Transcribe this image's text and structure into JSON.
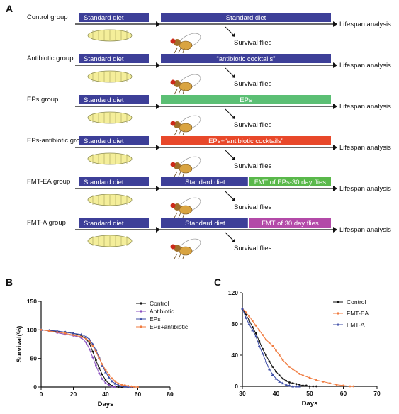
{
  "panels": {
    "a": "A",
    "b": "B",
    "c": "C"
  },
  "colors": {
    "diet": "#3d3f98",
    "eps": "#5bbf74",
    "antibiotic_eps": "#e8482a",
    "fmt_ea": "#59b84a",
    "fmt_a": "#b34aa8",
    "larva": "#f4ee9a"
  },
  "diagram": {
    "rows": [
      {
        "group": "Control group",
        "pre": "Standard diet",
        "post": [
          {
            "text": "Standard diet",
            "color": "#3d3f98",
            "frac": 1
          }
        ],
        "survival": "Survival flies",
        "outcome": "Lifespan analysis"
      },
      {
        "group": "Antibiotic group",
        "pre": "Standard diet",
        "post": [
          {
            "text": "“antibiotic cocktails”",
            "color": "#3d3f98",
            "frac": 1
          }
        ],
        "survival": "Survival flies",
        "outcome": "Lifespan analysis"
      },
      {
        "group": "EPs group",
        "pre": "Standard diet",
        "post": [
          {
            "text": "EPs",
            "color": "#5bbf74",
            "frac": 1
          }
        ],
        "survival": "Survival flies",
        "outcome": "Lifespan analysis"
      },
      {
        "group": "EPs-antibiotic group",
        "pre": "Standard diet",
        "post": [
          {
            "text": "EPs+“antibiotic cocktails”",
            "color": "#e8482a",
            "frac": 1
          }
        ],
        "survival": "Survival flies",
        "outcome": "Lifespan analysis"
      },
      {
        "group": "FMT-EA group",
        "pre": "Standard diet",
        "post": [
          {
            "text": "Standard diet",
            "color": "#3d3f98",
            "frac": 0.52
          },
          {
            "text": "FMT of EPs-30 day flies",
            "color": "#59b84a",
            "frac": 0.48
          }
        ],
        "survival": "Survival flies",
        "outcome": "Lifespan analysis"
      },
      {
        "group": "FMT-A group",
        "pre": "Standard diet",
        "post": [
          {
            "text": "Standard diet",
            "color": "#3d3f98",
            "frac": 0.52
          },
          {
            "text": "FMT of 30 day flies",
            "color": "#b34aa8",
            "frac": 0.48
          }
        ],
        "survival": "Survival flies",
        "outcome": "Lifespan analysis"
      }
    ]
  },
  "chart_data": [
    {
      "type": "line",
      "panel": "B",
      "xlabel": "Days",
      "ylabel": "Survival(%)",
      "xlim": [
        0,
        80
      ],
      "ylim": [
        0,
        150
      ],
      "xticks": [
        0,
        20,
        40,
        60,
        80
      ],
      "yticks": [
        0,
        50,
        100,
        150
      ],
      "legend_position": "top-right",
      "series": [
        {
          "name": "Control",
          "color": "#111111",
          "marker": "circle",
          "x": [
            0,
            5,
            10,
            15,
            20,
            25,
            28,
            30,
            32,
            34,
            36,
            38,
            40,
            42,
            44,
            46,
            48,
            50
          ],
          "y": [
            100,
            99,
            97,
            96,
            94,
            90,
            84,
            76,
            62,
            47,
            33,
            22,
            12,
            6,
            2,
            1,
            0,
            0
          ]
        },
        {
          "name": "Antibiotic",
          "color": "#8a4fbf",
          "marker": "circle",
          "x": [
            0,
            5,
            10,
            15,
            20,
            25,
            28,
            30,
            32,
            34,
            36,
            38,
            40,
            42,
            44,
            46
          ],
          "y": [
            100,
            98,
            95,
            92,
            90,
            86,
            78,
            66,
            52,
            38,
            24,
            14,
            7,
            3,
            1,
            0
          ]
        },
        {
          "name": "EPs",
          "color": "#3b4ba6",
          "marker": "triangle",
          "x": [
            0,
            5,
            10,
            15,
            20,
            25,
            28,
            30,
            32,
            34,
            36,
            38,
            40,
            42,
            44,
            46,
            48,
            50,
            52,
            54,
            56
          ],
          "y": [
            100,
            99,
            98,
            96,
            94,
            92,
            88,
            83,
            75,
            65,
            52,
            38,
            26,
            17,
            10,
            6,
            3,
            2,
            1,
            0,
            0
          ]
        },
        {
          "name": "EPs+antibiotic",
          "color": "#f07b3f",
          "marker": "circle",
          "x": [
            0,
            5,
            10,
            15,
            20,
            25,
            28,
            30,
            32,
            34,
            36,
            38,
            40,
            42,
            44,
            46,
            48,
            50,
            52,
            54,
            56,
            58,
            60
          ],
          "y": [
            100,
            98,
            96,
            94,
            91,
            88,
            84,
            80,
            72,
            62,
            50,
            40,
            30,
            22,
            15,
            10,
            6,
            4,
            3,
            2,
            1,
            0,
            0
          ]
        }
      ]
    },
    {
      "type": "line",
      "panel": "C",
      "xlabel": "Days",
      "ylabel": "",
      "xlim": [
        30,
        70
      ],
      "ylim": [
        0,
        120
      ],
      "xticks": [
        30,
        40,
        50,
        60,
        70
      ],
      "yticks": [
        0,
        40,
        80,
        120
      ],
      "legend_position": "top-right",
      "series": [
        {
          "name": "Control",
          "color": "#111111",
          "marker": "circle",
          "x": [
            30,
            31,
            32,
            33,
            34,
            35,
            36,
            37,
            38,
            39,
            40,
            41,
            42,
            43,
            44,
            45,
            46,
            47,
            48,
            49,
            50,
            51,
            52
          ],
          "y": [
            100,
            92,
            85,
            76,
            68,
            58,
            48,
            40,
            32,
            25,
            19,
            14,
            10,
            7,
            5,
            4,
            3,
            2,
            1,
            1,
            0,
            0,
            0
          ]
        },
        {
          "name": "FMT-EA",
          "color": "#f07b3f",
          "marker": "circle",
          "x": [
            30,
            31,
            32,
            33,
            34,
            35,
            36,
            37,
            38,
            39,
            40,
            41,
            42,
            43,
            44,
            45,
            46,
            47,
            48,
            50,
            52,
            54,
            56,
            58,
            60,
            62,
            63
          ],
          "y": [
            100,
            95,
            90,
            84,
            78,
            72,
            66,
            60,
            56,
            52,
            46,
            40,
            34,
            29,
            25,
            22,
            19,
            16,
            14,
            11,
            8,
            6,
            4,
            2,
            1,
            0,
            0
          ]
        },
        {
          "name": "FMT-A",
          "color": "#3b4ba6",
          "marker": "triangle",
          "x": [
            30,
            31,
            32,
            33,
            34,
            35,
            36,
            37,
            38,
            39,
            40,
            41,
            42,
            43,
            44,
            45,
            46,
            47
          ],
          "y": [
            100,
            88,
            80,
            72,
            64,
            52,
            42,
            32,
            22,
            15,
            10,
            6,
            4,
            2,
            1,
            0,
            0,
            0
          ]
        }
      ]
    }
  ]
}
